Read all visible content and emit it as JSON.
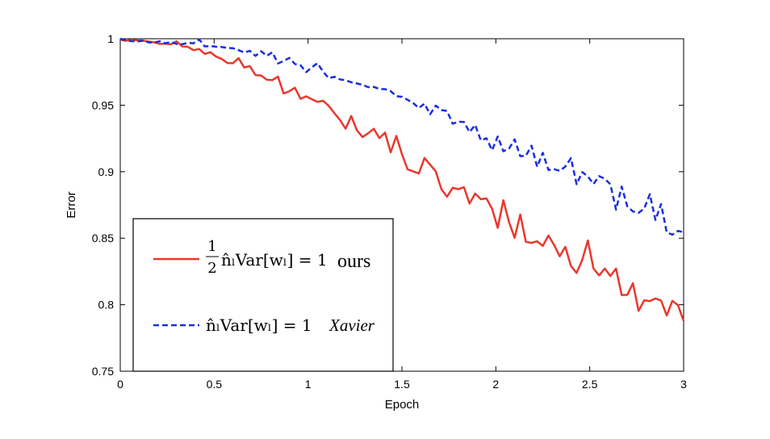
{
  "chart_data": {
    "type": "line",
    "title": "",
    "xlabel": "Epoch",
    "ylabel": "Error",
    "xlim": [
      0,
      3
    ],
    "ylim": [
      0.75,
      1
    ],
    "x_ticks": [
      0,
      0.5,
      1,
      1.5,
      2,
      2.5,
      3
    ],
    "x_tick_labels": [
      "0",
      "0.5",
      "1",
      "1.5",
      "2",
      "2.5",
      "3"
    ],
    "y_ticks": [
      0.75,
      0.8,
      0.85,
      0.9,
      0.95,
      1
    ],
    "y_tick_labels": [
      "0.75",
      "0.8",
      "0.85",
      "0.9",
      "0.95",
      "1"
    ],
    "grid": false,
    "legend_position": "lower-left",
    "series": [
      {
        "color": "#e8382e",
        "line_style": "solid",
        "legend": {
          "frac_num": "1",
          "frac_den": "2",
          "expr": "n̂ₗVar[wₗ] = 1",
          "tag": "ours"
        },
        "x": [
          0,
          0.03,
          0.06,
          0.09,
          0.12,
          0.15,
          0.18,
          0.21,
          0.24,
          0.27,
          0.3,
          0.33,
          0.36,
          0.39,
          0.42,
          0.45,
          0.48,
          0.51,
          0.54,
          0.57,
          0.6,
          0.63,
          0.66,
          0.69,
          0.72,
          0.75,
          0.78,
          0.81,
          0.84,
          0.87,
          0.9,
          0.93,
          0.96,
          0.99,
          1.02,
          1.05,
          1.08,
          1.11,
          1.14,
          1.17,
          1.2,
          1.23,
          1.26,
          1.29,
          1.32,
          1.35,
          1.38,
          1.41,
          1.44,
          1.47,
          1.5,
          1.53,
          1.56,
          1.59,
          1.62,
          1.65,
          1.68,
          1.71,
          1.74,
          1.77,
          1.8,
          1.83,
          1.86,
          1.89,
          1.92,
          1.95,
          1.98,
          2.01,
          2.04,
          2.07,
          2.1,
          2.13,
          2.16,
          2.19,
          2.22,
          2.25,
          2.28,
          2.31,
          2.34,
          2.37,
          2.4,
          2.43,
          2.46,
          2.49,
          2.52,
          2.55,
          2.58,
          2.61,
          2.64,
          2.67,
          2.7,
          2.73,
          2.76,
          2.79,
          2.82,
          2.85,
          2.88,
          2.91,
          2.94,
          2.97,
          3.0
        ],
        "y": [
          0.9993,
          0.9985,
          0.9992,
          0.9988,
          0.9986,
          0.9979,
          0.9973,
          0.9961,
          0.9963,
          0.9958,
          0.9981,
          0.9942,
          0.9939,
          0.9914,
          0.9923,
          0.9886,
          0.9899,
          0.9866,
          0.9848,
          0.9818,
          0.9816,
          0.9854,
          0.9784,
          0.9794,
          0.9727,
          0.9723,
          0.9692,
          0.9689,
          0.9715,
          0.9588,
          0.9605,
          0.9632,
          0.9548,
          0.9567,
          0.9545,
          0.9525,
          0.9534,
          0.9495,
          0.9441,
          0.9389,
          0.9324,
          0.9419,
          0.9312,
          0.9261,
          0.9289,
          0.9323,
          0.9253,
          0.9294,
          0.9146,
          0.9269,
          0.9132,
          0.9018,
          0.9002,
          0.8987,
          0.9103,
          0.9053,
          0.9003,
          0.8869,
          0.8812,
          0.8879,
          0.8869,
          0.8884,
          0.8761,
          0.8836,
          0.8793,
          0.8799,
          0.8722,
          0.8578,
          0.8786,
          0.8622,
          0.8503,
          0.8678,
          0.8473,
          0.8465,
          0.8477,
          0.8442,
          0.852,
          0.845,
          0.8364,
          0.8435,
          0.8291,
          0.8239,
          0.8337,
          0.8483,
          0.8272,
          0.822,
          0.8272,
          0.8216,
          0.8272,
          0.8073,
          0.8074,
          0.8162,
          0.7954,
          0.8033,
          0.8027,
          0.8047,
          0.8031,
          0.7919,
          0.8029,
          0.7996,
          0.7878
        ]
      },
      {
        "color": "#1a2ee0",
        "line_style": "dashed",
        "legend": {
          "expr": "n̂ₗVar[wₗ] = 1",
          "tag": "Xavier"
        },
        "x": [
          0,
          0.03,
          0.06,
          0.09,
          0.12,
          0.15,
          0.18,
          0.21,
          0.24,
          0.27,
          0.3,
          0.33,
          0.36,
          0.39,
          0.42,
          0.45,
          0.48,
          0.51,
          0.54,
          0.57,
          0.6,
          0.63,
          0.66,
          0.69,
          0.72,
          0.75,
          0.78,
          0.81,
          0.84,
          0.87,
          0.9,
          0.93,
          0.96,
          0.99,
          1.02,
          1.05,
          1.08,
          1.11,
          1.14,
          1.17,
          1.2,
          1.23,
          1.26,
          1.29,
          1.32,
          1.35,
          1.38,
          1.41,
          1.44,
          1.47,
          1.5,
          1.53,
          1.56,
          1.59,
          1.62,
          1.65,
          1.68,
          1.71,
          1.74,
          1.77,
          1.8,
          1.83,
          1.86,
          1.89,
          1.92,
          1.95,
          1.98,
          2.01,
          2.04,
          2.07,
          2.1,
          2.13,
          2.16,
          2.19,
          2.22,
          2.25,
          2.28,
          2.31,
          2.34,
          2.37,
          2.4,
          2.43,
          2.46,
          2.49,
          2.52,
          2.55,
          2.58,
          2.61,
          2.64,
          2.67,
          2.7,
          2.73,
          2.76,
          2.79,
          2.82,
          2.85,
          2.88,
          2.91,
          2.94,
          2.97,
          3.0
        ],
        "y": [
          1.0,
          0.9987,
          0.9982,
          0.9979,
          0.9985,
          0.9973,
          0.9971,
          0.9981,
          0.9966,
          0.9975,
          0.9961,
          0.9959,
          0.9969,
          0.9966,
          0.9995,
          0.9942,
          0.9945,
          0.994,
          0.9938,
          0.9931,
          0.9929,
          0.9914,
          0.9897,
          0.9909,
          0.9871,
          0.9906,
          0.9872,
          0.9898,
          0.9814,
          0.9833,
          0.9856,
          0.981,
          0.98,
          0.9749,
          0.9785,
          0.9816,
          0.9753,
          0.9703,
          0.9714,
          0.9694,
          0.9688,
          0.9673,
          0.9664,
          0.9653,
          0.9636,
          0.9638,
          0.9622,
          0.9621,
          0.9606,
          0.9568,
          0.9563,
          0.9541,
          0.9516,
          0.9479,
          0.9512,
          0.9432,
          0.9497,
          0.9464,
          0.9457,
          0.9361,
          0.9376,
          0.9374,
          0.9298,
          0.9352,
          0.9236,
          0.9252,
          0.9162,
          0.9265,
          0.9154,
          0.9173,
          0.9243,
          0.9117,
          0.912,
          0.9196,
          0.9037,
          0.9142,
          0.9013,
          0.9019,
          0.9007,
          0.9039,
          0.9102,
          0.8906,
          0.8997,
          0.8964,
          0.8908,
          0.8967,
          0.8947,
          0.8905,
          0.8715,
          0.8888,
          0.874,
          0.8701,
          0.8691,
          0.8723,
          0.8831,
          0.8637,
          0.8757,
          0.8544,
          0.8527,
          0.8555,
          0.8545
        ]
      }
    ]
  }
}
